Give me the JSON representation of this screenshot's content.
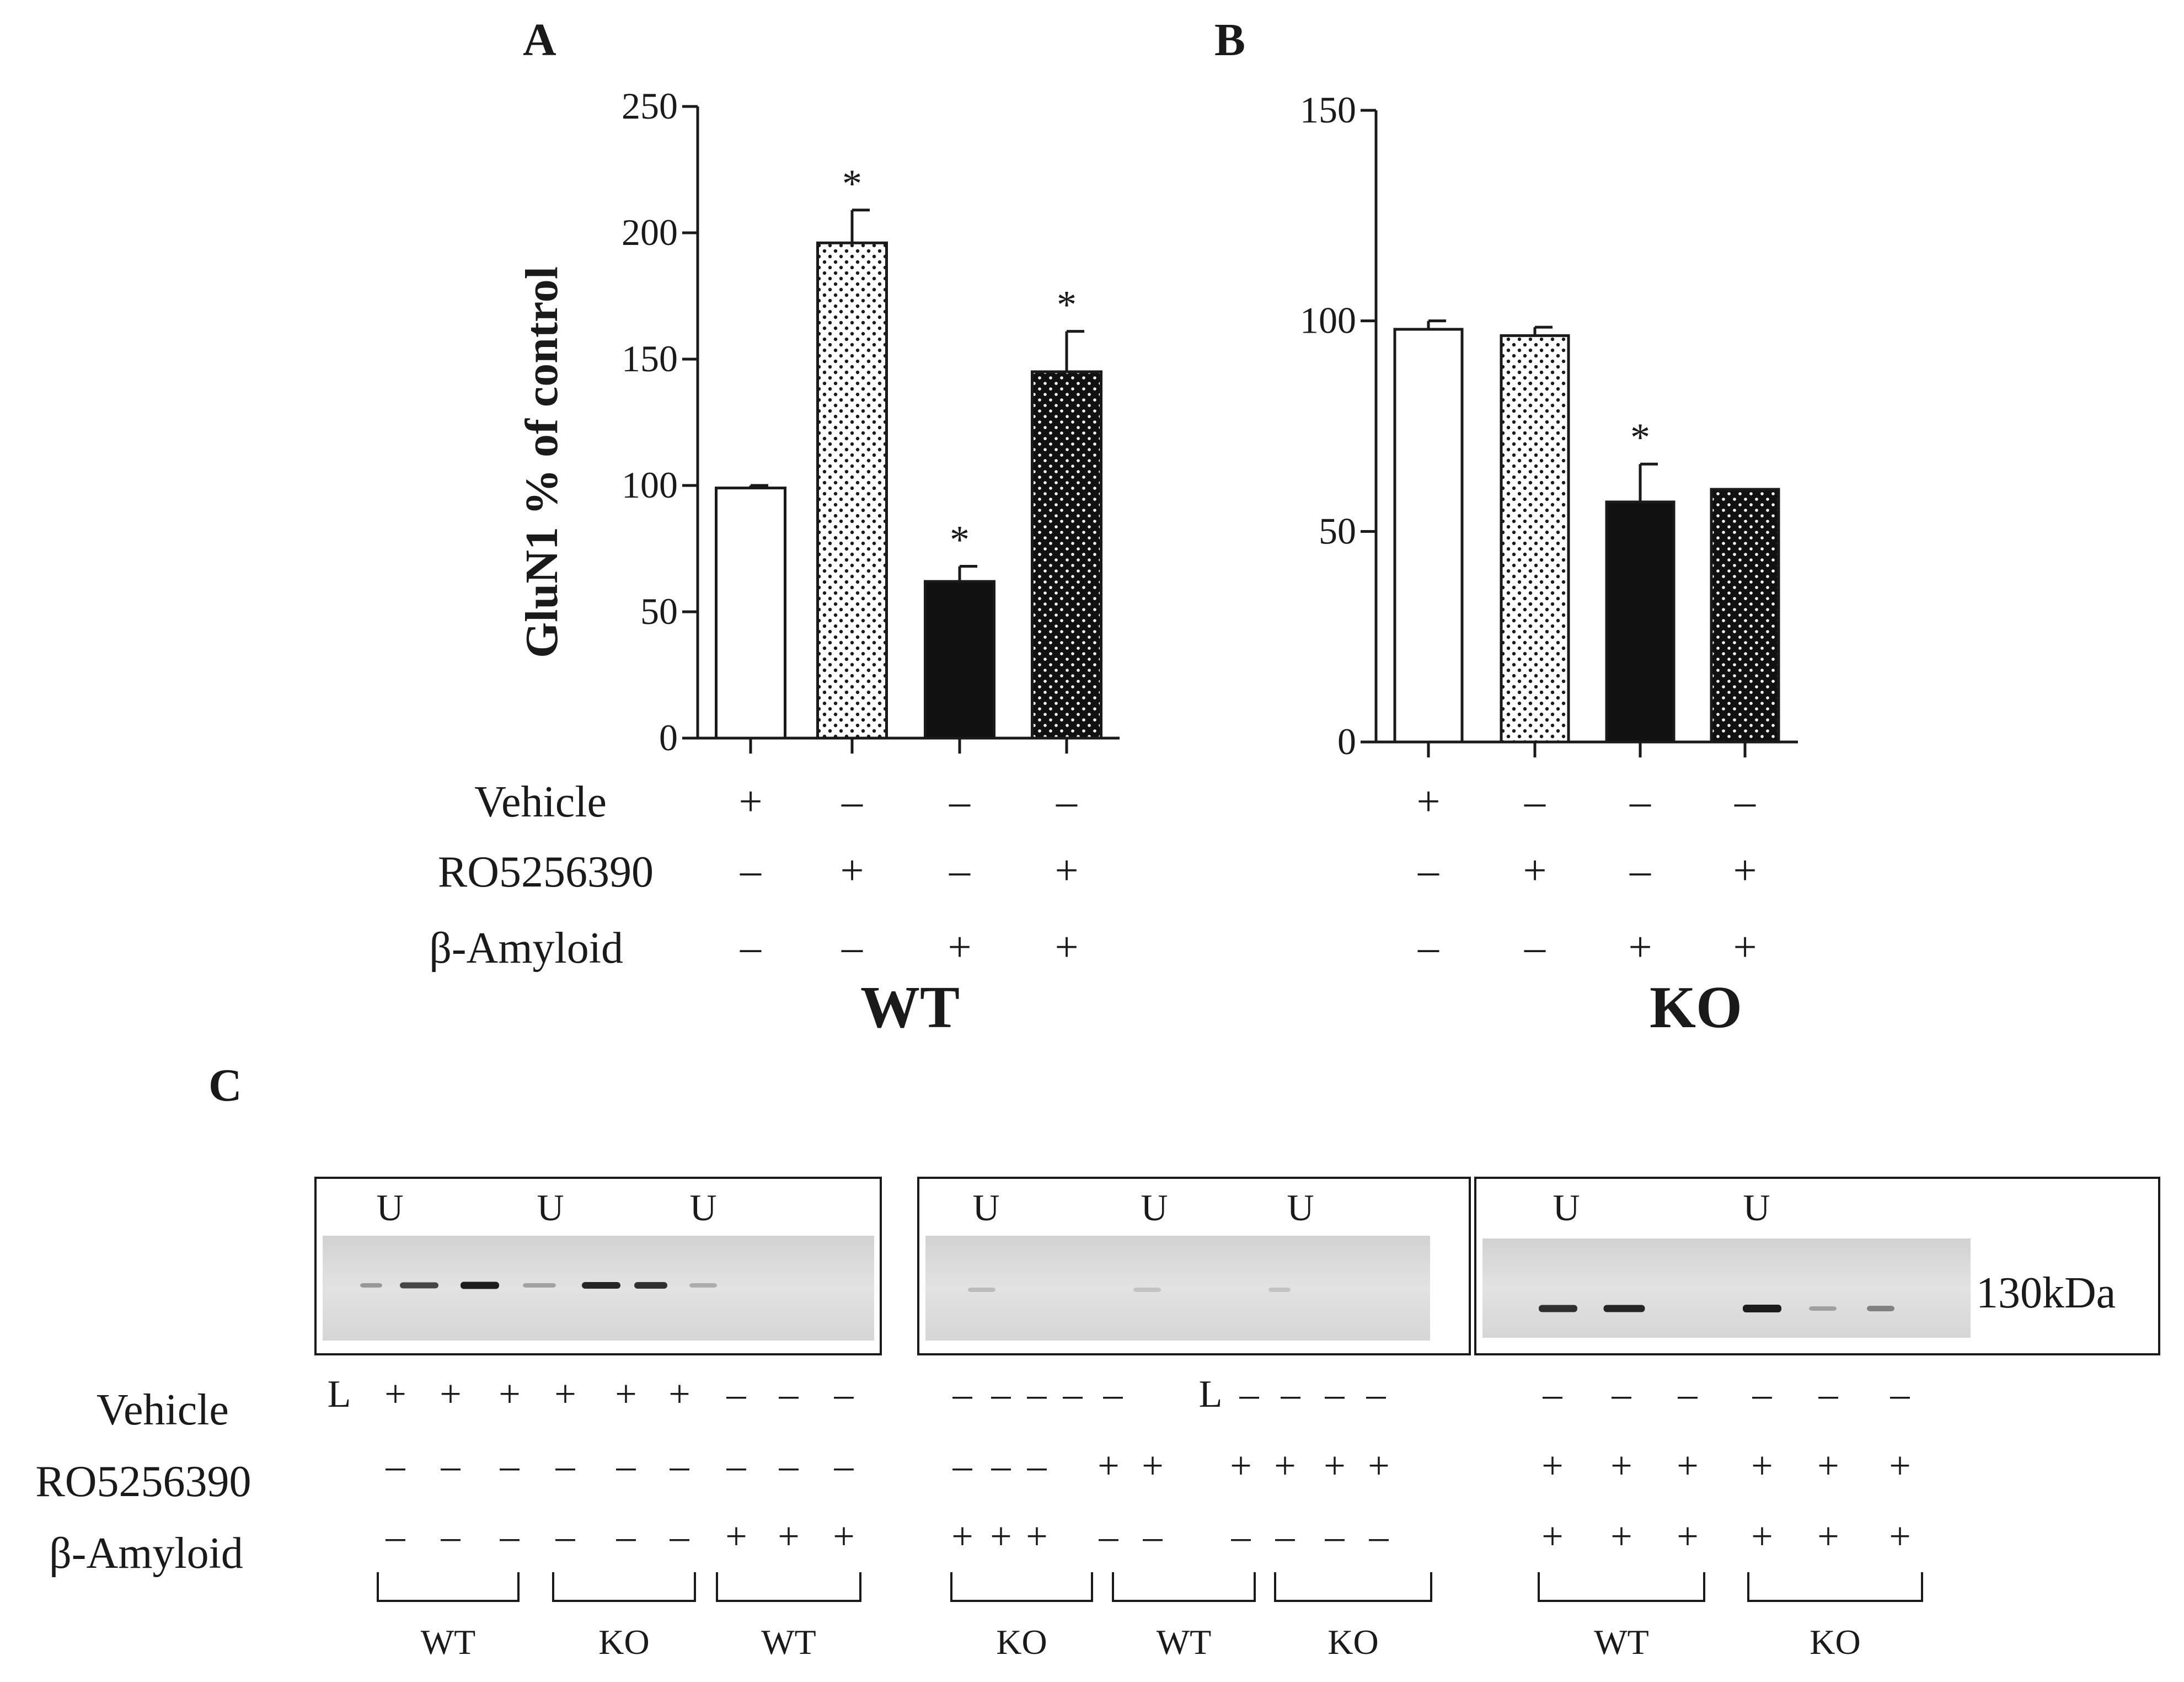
{
  "chart_data": [
    {
      "type": "bar",
      "panel": "A",
      "group": "WT",
      "ylabel": "GluN1 % of control",
      "ylim": [
        0,
        250
      ],
      "yticks": [
        "0",
        "50",
        "100",
        "150",
        "200",
        "250"
      ],
      "categories": [
        "Vehicle",
        "RO5256390",
        "β-Amyloid",
        "RO5256390 + β-Amyloid"
      ],
      "values": [
        99,
        196,
        62,
        145
      ],
      "errors": [
        1,
        13,
        6,
        16
      ],
      "significant": [
        "",
        "*",
        "*",
        "*"
      ],
      "fills": [
        "white",
        "dots-dense",
        "black",
        "black-dots"
      ]
    },
    {
      "type": "bar",
      "panel": "B",
      "group": "KO",
      "ylabel": "",
      "ylim": [
        0,
        150
      ],
      "yticks": [
        "0",
        "50",
        "100",
        "150"
      ],
      "categories": [
        "Vehicle",
        "RO5256390",
        "β-Amyloid",
        "RO5256390 + β-Amyloid"
      ],
      "values": [
        98,
        96.5,
        57,
        60
      ],
      "errors": [
        2,
        2,
        9,
        0
      ],
      "significant": [
        "",
        "",
        "*",
        ""
      ],
      "fills": [
        "white",
        "dots-dense",
        "black",
        "black-dots"
      ]
    }
  ],
  "conditions": {
    "labels": [
      "Vehicle",
      "RO5256390",
      "β-Amyloid"
    ],
    "A": [
      [
        "+",
        "–",
        "–",
        "–"
      ],
      [
        "–",
        "+",
        "–",
        "+"
      ],
      [
        "–",
        "–",
        "+",
        "+"
      ]
    ],
    "B": [
      [
        "+",
        "–",
        "–",
        "–"
      ],
      [
        "–",
        "+",
        "–",
        "+"
      ],
      [
        "–",
        "–",
        "+",
        "+"
      ]
    ]
  },
  "blot": {
    "panel": "C",
    "marker": "130kDa",
    "row_labels": [
      "Vehicle",
      "RO5256390",
      "β-Amyloid"
    ],
    "boxes": [
      {
        "u": [
          "U",
          "U",
          "U"
        ],
        "vehicle": [
          "L",
          "+",
          "+",
          "+",
          "+",
          "+",
          "+",
          "–",
          "–",
          "–"
        ],
        "ro": [
          "–",
          "–",
          "–",
          "–",
          "–",
          "–",
          "–",
          "–",
          "–"
        ],
        "amyloid": [
          "–",
          "–",
          "–",
          "–",
          "–",
          "–",
          "+",
          "+",
          "+"
        ],
        "groups": [
          "WT",
          "KO",
          "WT"
        ]
      },
      {
        "u": [
          "U",
          "U",
          "U"
        ],
        "vehicle": [
          "–",
          "–",
          "–",
          "–",
          "–",
          "L",
          "–",
          "–",
          "–",
          "–"
        ],
        "ro": [
          "–",
          "–",
          "–",
          "+",
          "+",
          "+",
          "+",
          "+",
          "+"
        ],
        "amyloid": [
          "+",
          "+",
          "+",
          "–",
          "–",
          "–",
          "–",
          "–",
          "–"
        ],
        "groups": [
          "KO",
          "WT",
          "KO"
        ]
      },
      {
        "u": [
          "U",
          "U"
        ],
        "vehicle": [
          "–",
          "–",
          "–",
          "–",
          "–",
          "–"
        ],
        "ro": [
          "+",
          "+",
          "+",
          "+",
          "+",
          "+"
        ],
        "amyloid": [
          "+",
          "+",
          "+",
          "+",
          "+",
          "+"
        ],
        "groups": [
          "WT",
          "KO"
        ]
      }
    ]
  }
}
